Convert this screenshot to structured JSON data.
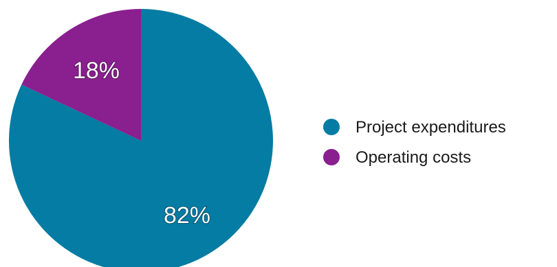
{
  "chart_data": {
    "type": "pie",
    "title": "",
    "start_angle_deg": 0,
    "direction": "clockwise",
    "slices": [
      {
        "label": "Project expenditures",
        "value": 82,
        "value_label": "82%",
        "color": "#047ca3"
      },
      {
        "label": "Operating costs",
        "value": 18,
        "value_label": "18%",
        "color": "#8a1f8f"
      }
    ],
    "legend": {
      "position": "right",
      "items": [
        "Project expenditures",
        "Operating costs"
      ]
    }
  }
}
